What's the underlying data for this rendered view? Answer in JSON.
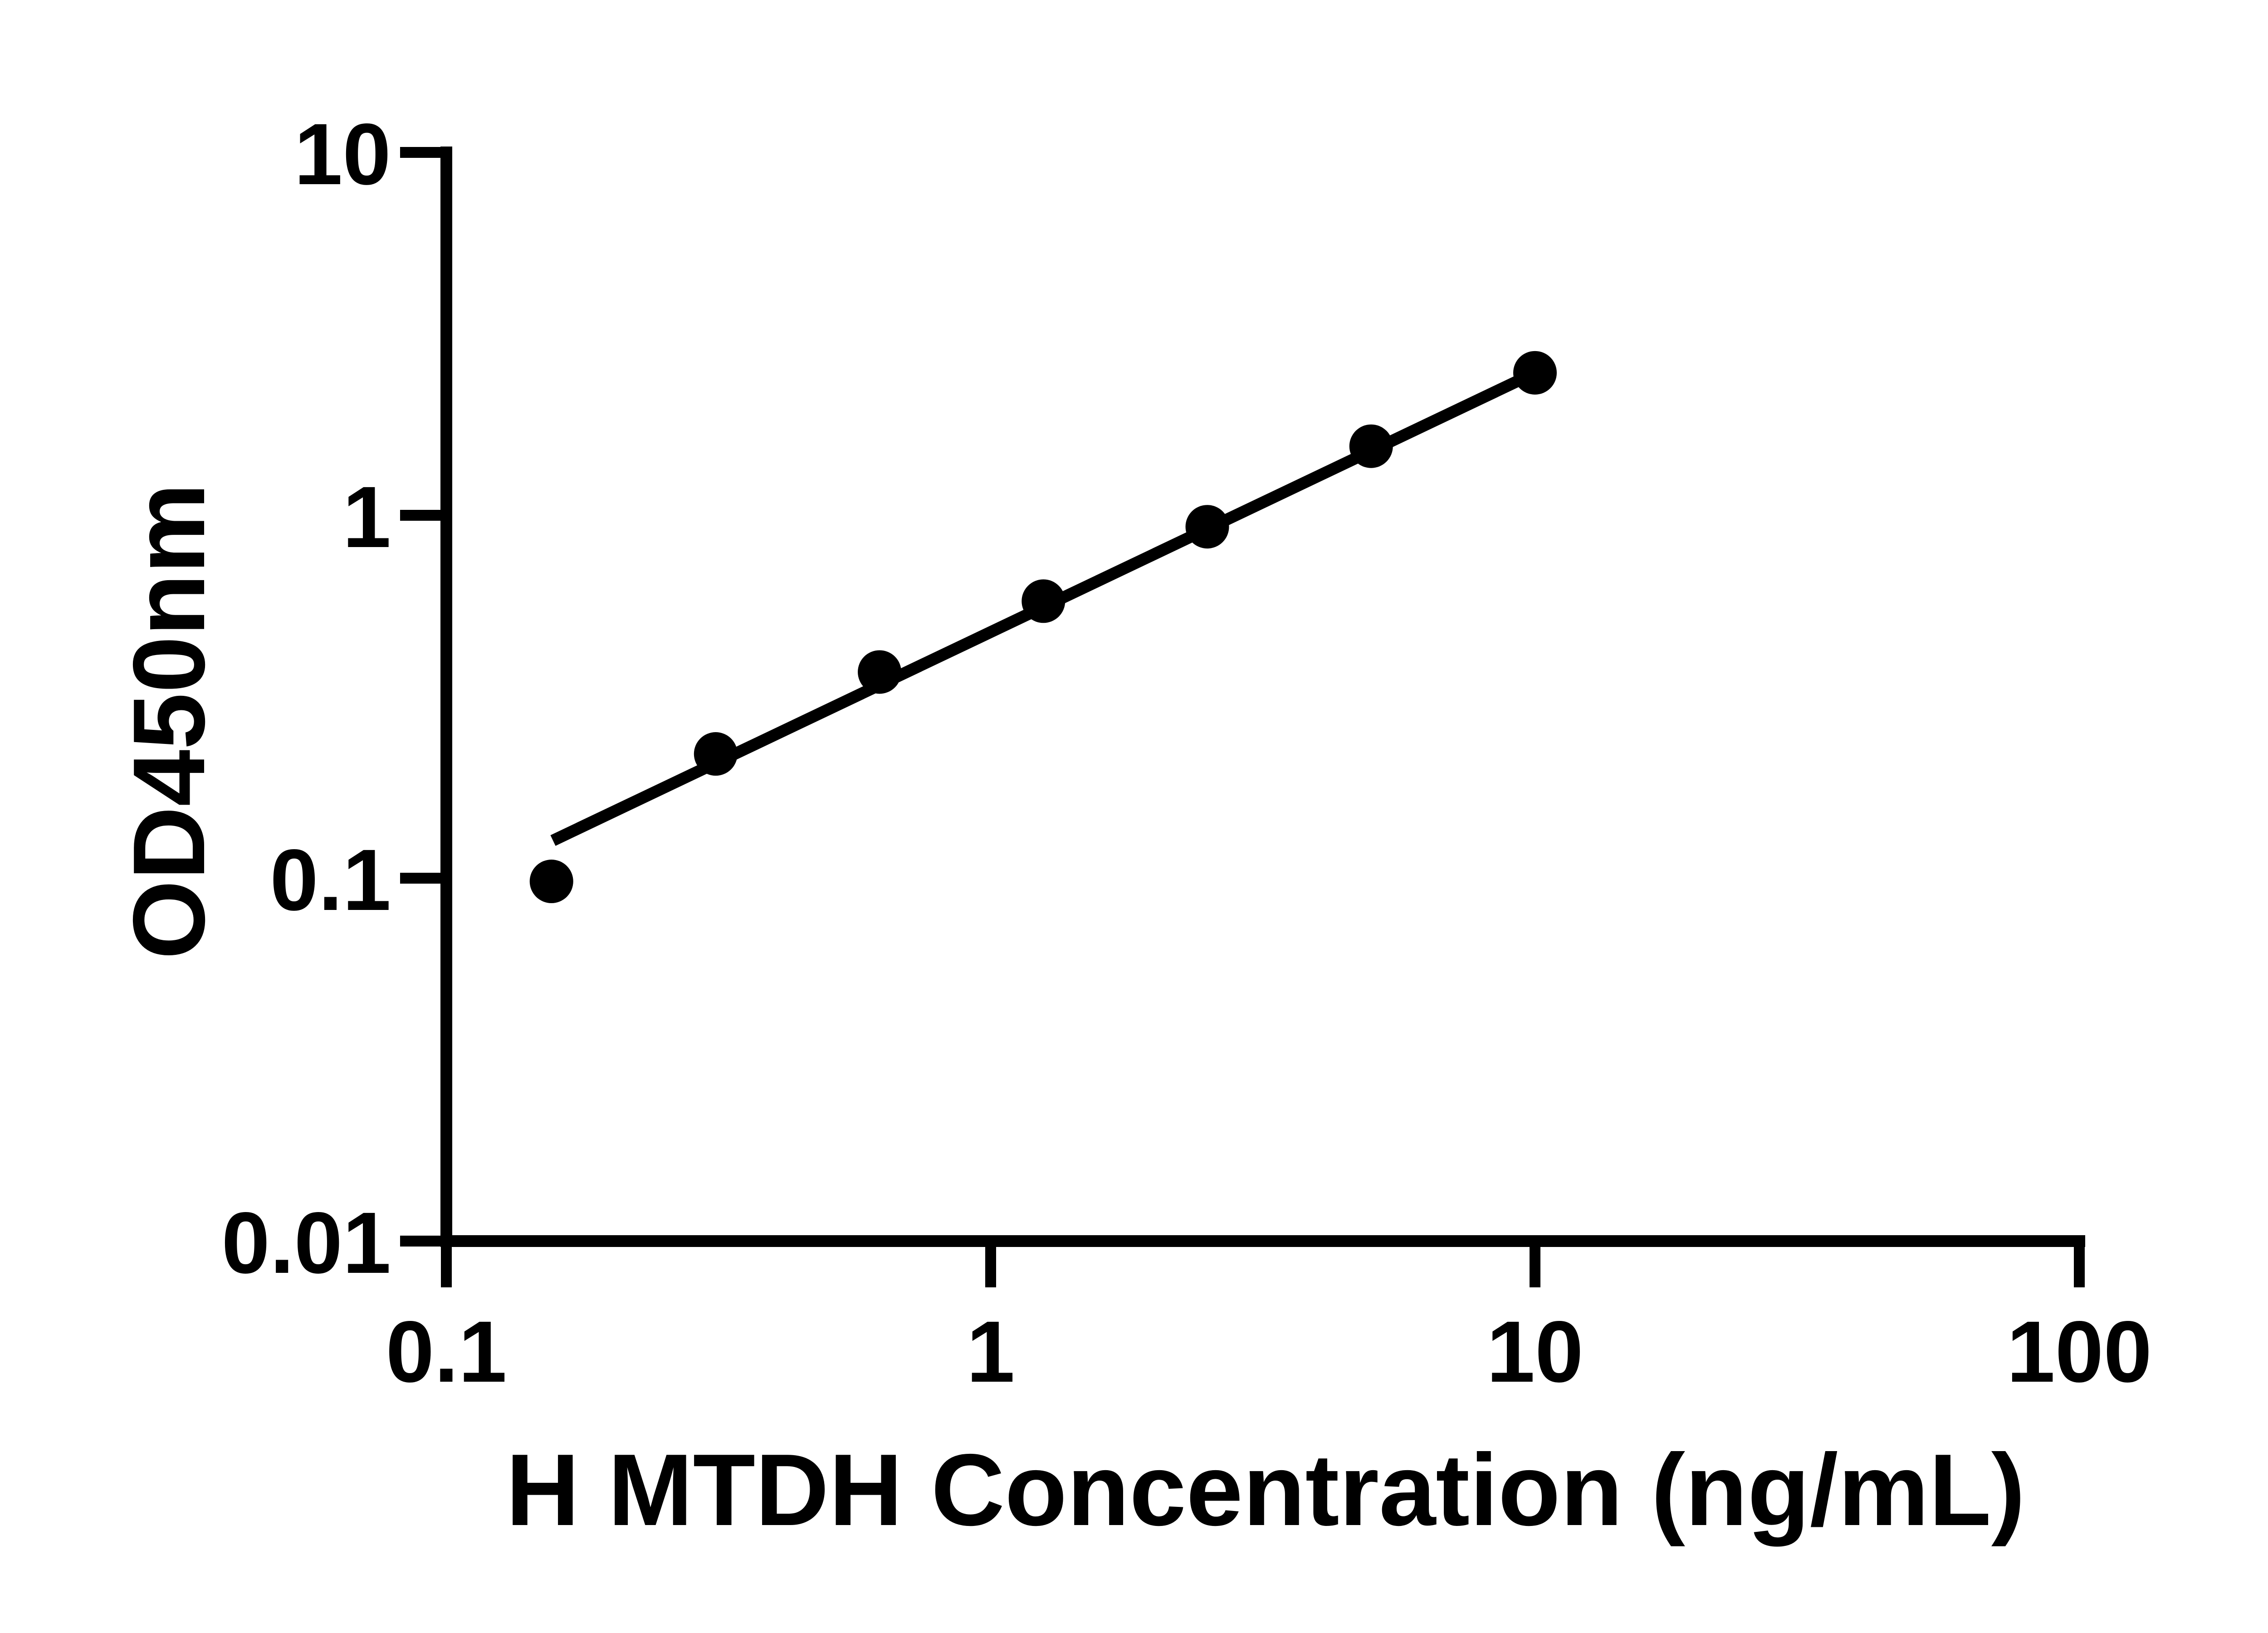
{
  "page": {
    "background": "#ffffff"
  },
  "colors": {
    "axis": "#000000",
    "marker": "#000000",
    "trend_line": "#000000",
    "text": "#000000"
  },
  "chart_data": {
    "type": "scatter",
    "title": "",
    "xlabel": "H MTDH Concentration (ng/mL)",
    "ylabel": "OD450nm",
    "x_scale": "log10",
    "y_scale": "log10",
    "xlim": [
      0.1,
      100
    ],
    "ylim": [
      0.01,
      10
    ],
    "grid": "off",
    "legend": "none",
    "x_ticks": [
      {
        "label": "0.1",
        "value": 0.1
      },
      {
        "label": "1",
        "value": 1
      },
      {
        "label": "10",
        "value": 10
      },
      {
        "label": "100",
        "value": 100
      }
    ],
    "y_ticks": [
      {
        "label": "10",
        "value": 10
      },
      {
        "label": "1",
        "value": 1
      },
      {
        "label": "0.1",
        "value": 0.1
      },
      {
        "label": "0.01",
        "value": 0.01
      }
    ],
    "series": [
      {
        "name": "standard-curve-points",
        "marker": "filled-circle",
        "points": [
          {
            "x": 0.156,
            "y": 0.098
          },
          {
            "x": 0.3125,
            "y": 0.22
          },
          {
            "x": 0.625,
            "y": 0.37
          },
          {
            "x": 1.25,
            "y": 0.58
          },
          {
            "x": 2.5,
            "y": 0.93
          },
          {
            "x": 5,
            "y": 1.55
          },
          {
            "x": 10,
            "y": 2.47
          }
        ]
      }
    ],
    "trend_line": {
      "x1": 0.157,
      "y1": 0.127,
      "x2": 10,
      "y2": 2.47
    }
  }
}
